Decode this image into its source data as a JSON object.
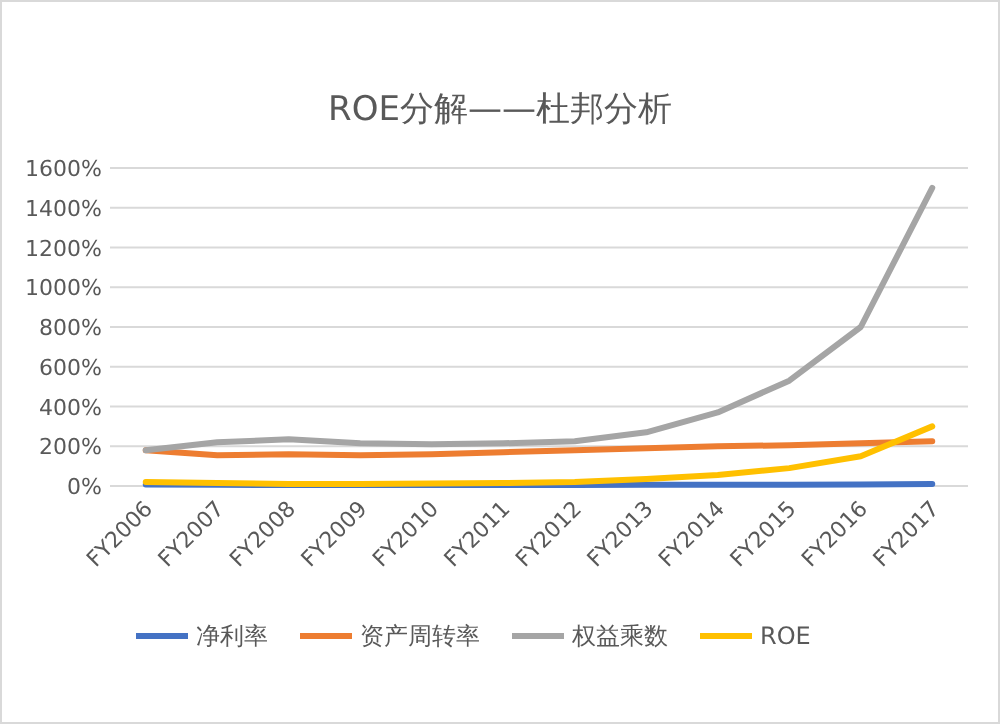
{
  "chart_data": {
    "type": "line",
    "title": "ROE分解——杜邦分析",
    "categories": [
      "FY2006",
      "FY2007",
      "FY2008",
      "FY2009",
      "FY2010",
      "FY2011",
      "FY2012",
      "FY2013",
      "FY2014",
      "FY2015",
      "FY2016",
      "FY2017"
    ],
    "series": [
      {
        "name": "净利率",
        "color": "#4472c4",
        "values": [
          8,
          6,
          5,
          5,
          5,
          5,
          5,
          6,
          6,
          6,
          7,
          10
        ]
      },
      {
        "name": "资产周转率",
        "color": "#ed7d31",
        "values": [
          180,
          155,
          160,
          155,
          160,
          170,
          180,
          190,
          200,
          205,
          215,
          225
        ]
      },
      {
        "name": "权益乘数",
        "color": "#a5a5a5",
        "values": [
          180,
          220,
          235,
          215,
          210,
          215,
          225,
          270,
          370,
          530,
          800,
          1500
        ]
      },
      {
        "name": "ROE",
        "color": "#ffc000",
        "values": [
          20,
          15,
          10,
          10,
          12,
          15,
          20,
          35,
          55,
          90,
          150,
          300
        ]
      }
    ],
    "ylim": [
      0,
      1600
    ],
    "yticks": [
      {
        "value": 0,
        "label": "0%"
      },
      {
        "value": 200,
        "label": "200%"
      },
      {
        "value": 400,
        "label": "400%"
      },
      {
        "value": 600,
        "label": "600%"
      },
      {
        "value": 800,
        "label": "800%"
      },
      {
        "value": 1000,
        "label": "1000%"
      },
      {
        "value": 1200,
        "label": "1200%"
      },
      {
        "value": 1400,
        "label": "1400%"
      },
      {
        "value": 1600,
        "label": "1600%"
      }
    ],
    "grid": "y",
    "legend": "bottom",
    "marker": "none",
    "line_style": "solid"
  }
}
